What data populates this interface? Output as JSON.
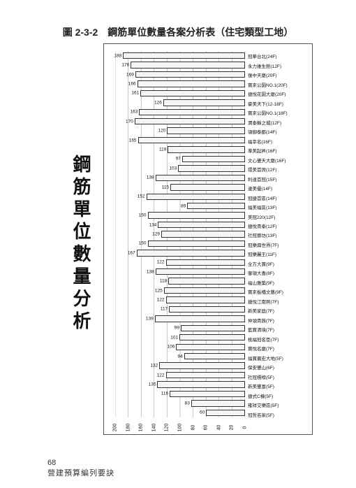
{
  "title": "圖 2-3-2　鋼筋單位數量各案分析表（住宅類型工地）",
  "axis_title": "鋼筋單位數量分析",
  "page_number": "68",
  "footer": "營建預算編列要訣",
  "chart": {
    "type": "bar",
    "orientation": "horizontal",
    "direction": "rtl",
    "xmax": 200,
    "xmin": 0,
    "xtick_step": 20,
    "xticks": [
      200,
      180,
      160,
      140,
      120,
      100,
      80,
      60,
      40,
      20,
      0
    ],
    "bar_fill": "#f5f5f5",
    "bar_border": "#333333",
    "grid_color": "#888888",
    "background": "#ffffff",
    "label_fontsize": 6.5,
    "tick_fontsize": 7,
    "rows": [
      {
        "label": "冠華台北(24F)",
        "value": 188
      },
      {
        "label": "永力維生館(12F)",
        "value": 176
      },
      {
        "label": "復中天廈(20F)",
        "value": 169
      },
      {
        "label": "寶來公園NO.1(20F)",
        "value": 166
      },
      {
        "label": "捷悅花園大廈(20F)",
        "value": 161
      },
      {
        "label": "豪美天下(12-18F)",
        "value": 126
      },
      {
        "label": "寶來公園NO.1(18F)",
        "value": 163
      },
      {
        "label": "潤泰靜之城(12F)",
        "value": 170
      },
      {
        "label": "領御泰郡(14F)",
        "value": 120
      },
      {
        "label": "福幸名(16F)",
        "value": 165
      },
      {
        "label": "準美起昇(16F)",
        "value": 119
      },
      {
        "label": "文心豐天大廈(16F)",
        "value": 97
      },
      {
        "label": "環美首席(12F)",
        "value": 103
      },
      {
        "label": "利達首冠(15F)",
        "value": 138
      },
      {
        "label": "連美優(14F)",
        "value": 115
      },
      {
        "label": "冠捷首區(14F)",
        "value": 152
      },
      {
        "label": "福美福區(13F)",
        "value": 89
      },
      {
        "label": "美冠220(12F)",
        "value": 150
      },
      {
        "label": "捷悅貴泰(12F)",
        "value": 134
      },
      {
        "label": "社冠藝坊(13F)",
        "value": 129
      },
      {
        "label": "冠樂興世界(7F)",
        "value": 150
      },
      {
        "label": "冠樂麗王(11F)",
        "value": 167
      },
      {
        "label": "全方大寶(9F)",
        "value": 122
      },
      {
        "label": "御領大喜(8F)",
        "value": 138
      },
      {
        "label": "福山雅築(9F)",
        "value": 118
      },
      {
        "label": "寶來板橋文藝(9F)",
        "value": 125
      },
      {
        "label": "捷悅江南照(7F)",
        "value": 122
      },
      {
        "label": "新美家庭(7F)",
        "value": 117
      },
      {
        "label": "仲領貴族(7F)",
        "value": 139
      },
      {
        "label": "藍寶清境(7F)",
        "value": 99
      },
      {
        "label": "桃福冠名臣(7F)",
        "value": 101
      },
      {
        "label": "寶悅名廈(7F)",
        "value": 106
      },
      {
        "label": "福寶晨宏大地(5F)",
        "value": 94
      },
      {
        "label": "保安豐山(6F)",
        "value": 132
      },
      {
        "label": "社冠標榜(5F)",
        "value": 122
      },
      {
        "label": "新美豐富(5F)",
        "value": 135
      },
      {
        "label": "捷式C棟(5F)",
        "value": 116
      },
      {
        "label": "雍祥交樂區(5F)",
        "value": 83
      },
      {
        "label": "冠哲名家(5F)",
        "value": 60
      }
    ]
  }
}
